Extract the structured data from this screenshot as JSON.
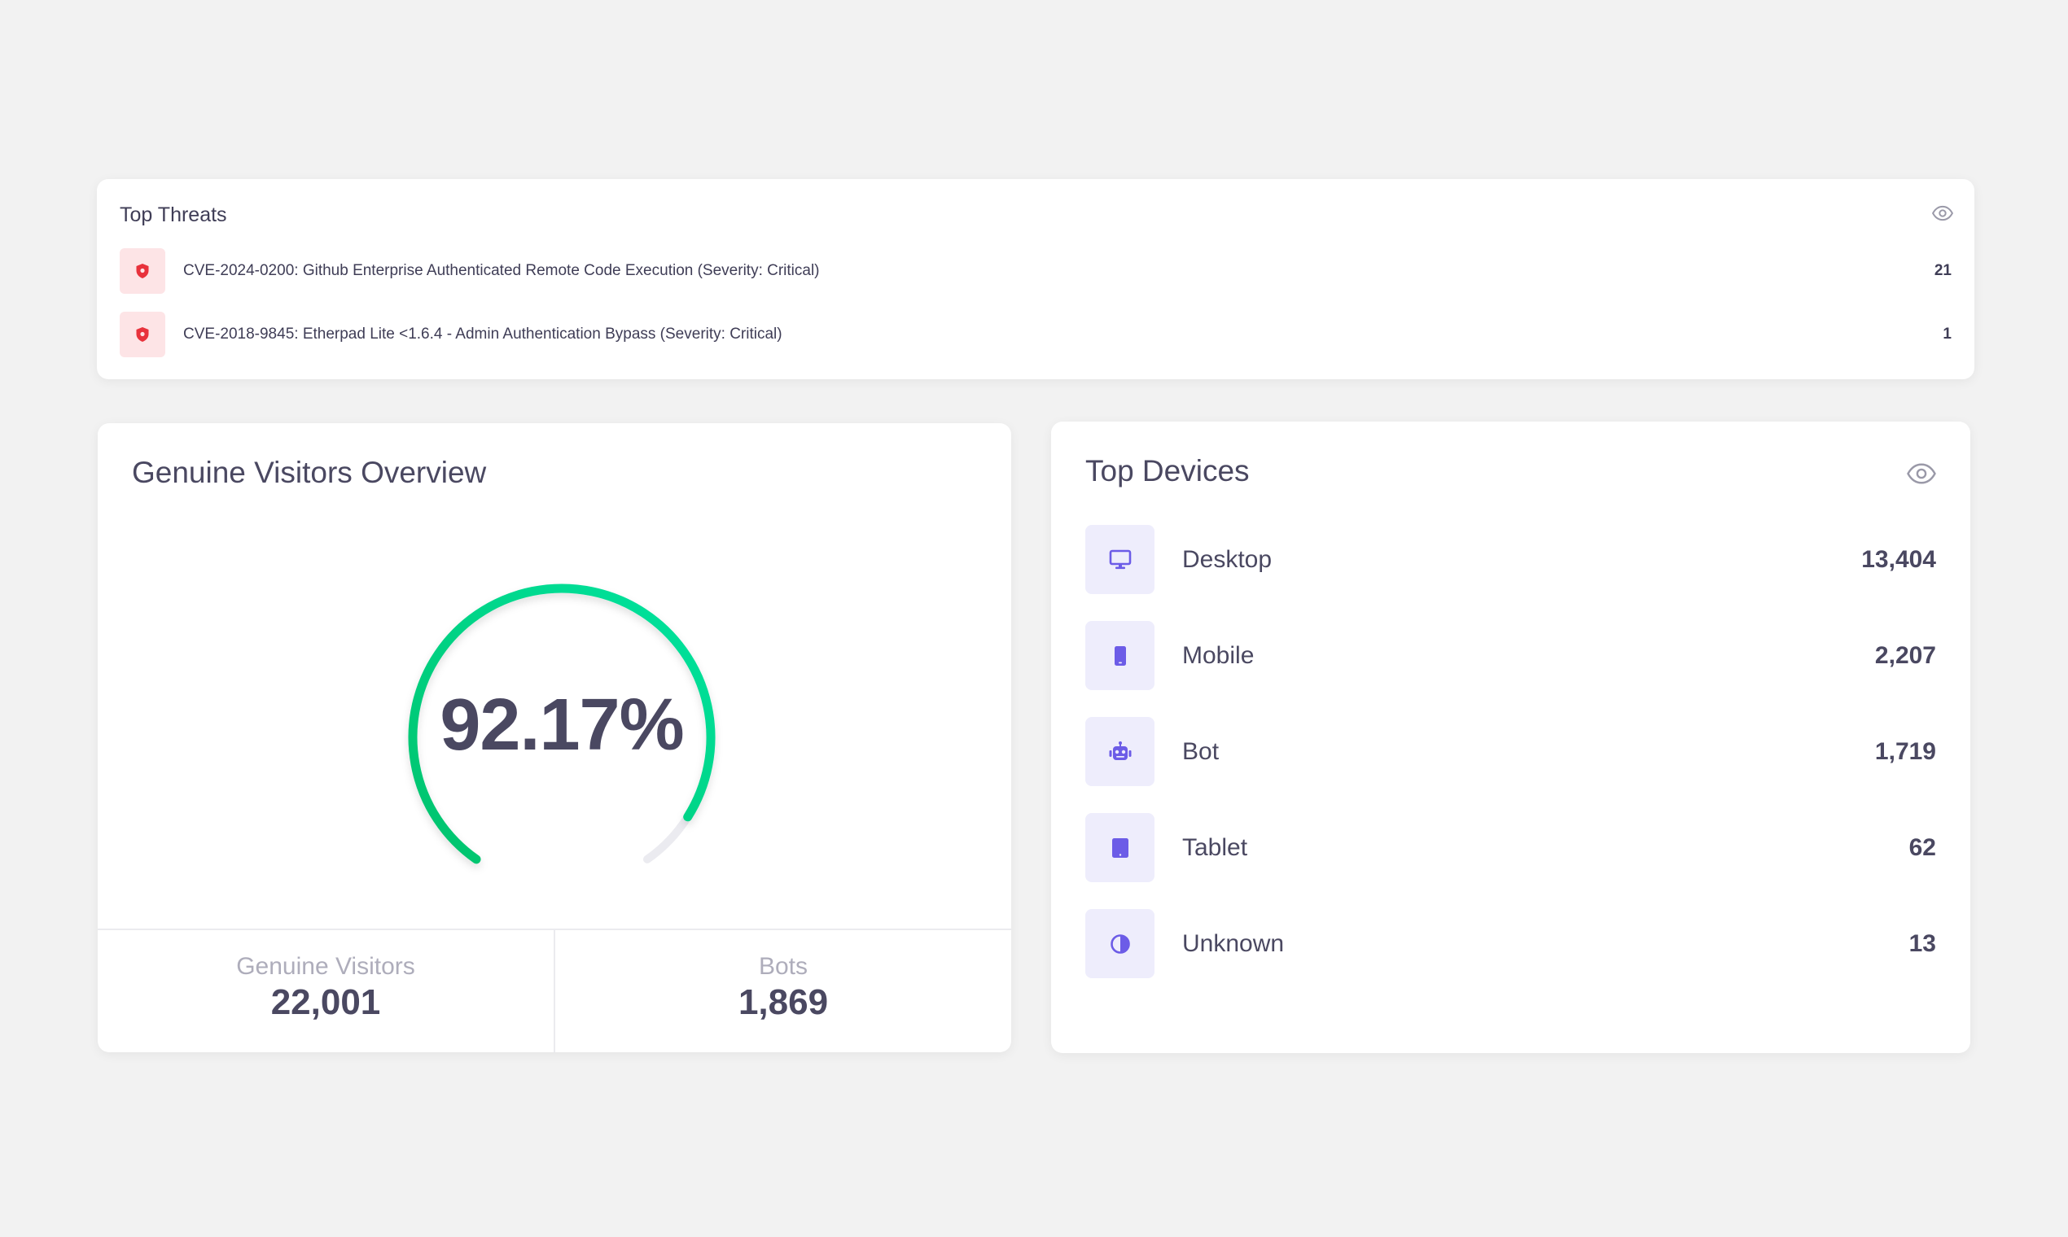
{
  "threats": {
    "title": "Top Threats",
    "items": [
      {
        "label": "CVE-2024-0200: Github Enterprise Authenticated Remote Code Execution (Severity: Critical)",
        "count": "21"
      },
      {
        "label": "CVE-2018-9845: Etherpad Lite <1.6.4 - Admin Authentication Bypass (Severity: Critical)",
        "count": "1"
      }
    ]
  },
  "visitors": {
    "title": "Genuine Visitors Overview",
    "percentage": "92.17%",
    "percentage_value": 92.17,
    "genuine_label": "Genuine Visitors",
    "genuine_value": "22,001",
    "bots_label": "Bots",
    "bots_value": "1,869"
  },
  "devices": {
    "title": "Top Devices",
    "items": [
      {
        "label": "Desktop",
        "count": "13,404",
        "icon": "desktop-icon"
      },
      {
        "label": "Mobile",
        "count": "2,207",
        "icon": "mobile-icon"
      },
      {
        "label": "Bot",
        "count": "1,719",
        "icon": "robot-icon"
      },
      {
        "label": "Tablet",
        "count": "62",
        "icon": "tablet-icon"
      },
      {
        "label": "Unknown",
        "count": "13",
        "icon": "unknown-icon"
      }
    ]
  },
  "colors": {
    "background": "#f2f2f2",
    "text": "#4a4861",
    "gauge_start": "#00c26b",
    "gauge_end": "#00e4a0",
    "gauge_track": "#ebebf0",
    "threat_icon": "#e8323c",
    "threat_icon_bg": "#fde4e6",
    "device_icon": "#6c5ce7",
    "device_icon_bg": "#eeedfc"
  }
}
